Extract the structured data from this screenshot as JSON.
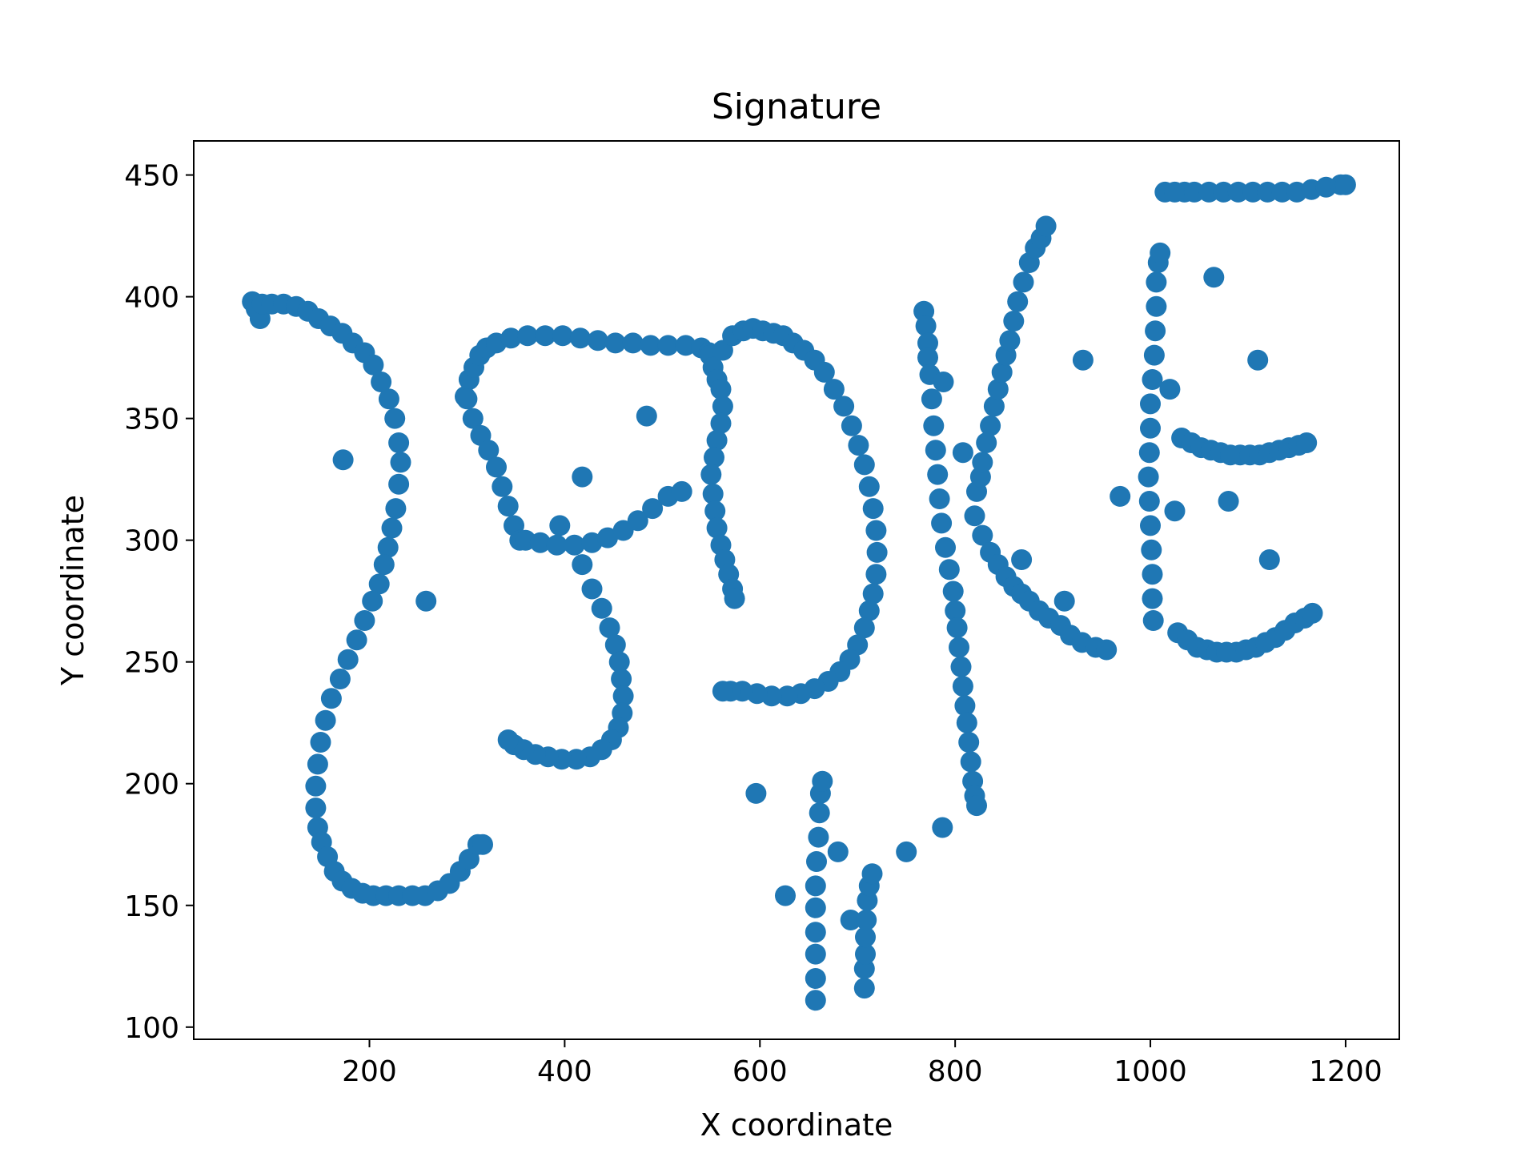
{
  "chart_data": {
    "type": "scatter",
    "title": "Signature",
    "xlabel": "X coordinate",
    "ylabel": "Y coordinate",
    "xlim": [
      20,
      1255
    ],
    "ylim": [
      95,
      464
    ],
    "xticks": [
      200,
      400,
      600,
      800,
      1000,
      1200
    ],
    "yticks": [
      100,
      150,
      200,
      250,
      300,
      350,
      400,
      450
    ],
    "grid": false,
    "marker_color": "#1f77b4",
    "series": [
      {
        "points": [
          [
            80,
            398
          ],
          [
            84,
            395
          ],
          [
            88,
            391
          ],
          [
            90,
            397
          ],
          [
            100,
            397
          ],
          [
            112,
            397
          ],
          [
            125,
            396
          ],
          [
            137,
            394
          ],
          [
            148,
            391
          ],
          [
            160,
            388
          ],
          [
            172,
            385
          ],
          [
            183,
            381
          ],
          [
            195,
            377
          ],
          [
            204,
            372
          ],
          [
            212,
            365
          ],
          [
            220,
            358
          ],
          [
            226,
            350
          ],
          [
            230,
            340
          ],
          [
            232,
            332
          ],
          [
            230,
            323
          ],
          [
            227,
            313
          ],
          [
            223,
            305
          ],
          [
            219,
            297
          ],
          [
            215,
            290
          ],
          [
            210,
            282
          ],
          [
            203,
            275
          ],
          [
            195,
            267
          ],
          [
            187,
            259
          ],
          [
            178,
            251
          ],
          [
            170,
            243
          ],
          [
            161,
            235
          ],
          [
            155,
            226
          ],
          [
            150,
            217
          ],
          [
            147,
            208
          ],
          [
            145,
            199
          ],
          [
            145,
            190
          ],
          [
            147,
            182
          ],
          [
            151,
            176
          ],
          [
            157,
            170
          ],
          [
            164,
            164
          ],
          [
            172,
            160
          ],
          [
            182,
            157
          ],
          [
            193,
            155
          ],
          [
            204,
            154
          ],
          [
            217,
            154
          ],
          [
            230,
            154
          ],
          [
            244,
            154
          ],
          [
            257,
            154
          ],
          [
            270,
            156
          ],
          [
            282,
            159
          ],
          [
            293,
            164
          ],
          [
            302,
            169
          ],
          [
            311,
            175
          ],
          [
            316,
            175
          ],
          [
            173,
            333
          ],
          [
            258,
            275
          ],
          [
            298,
            359
          ],
          [
            302,
            366
          ],
          [
            307,
            371
          ],
          [
            313,
            376
          ],
          [
            320,
            379
          ],
          [
            330,
            381
          ],
          [
            345,
            383
          ],
          [
            362,
            384
          ],
          [
            380,
            384
          ],
          [
            398,
            384
          ],
          [
            416,
            383
          ],
          [
            434,
            382
          ],
          [
            452,
            381
          ],
          [
            470,
            381
          ],
          [
            488,
            380
          ],
          [
            506,
            380
          ],
          [
            524,
            380
          ],
          [
            540,
            379
          ],
          [
            548,
            377
          ],
          [
            300,
            358
          ],
          [
            306,
            350
          ],
          [
            314,
            343
          ],
          [
            322,
            337
          ],
          [
            330,
            330
          ],
          [
            336,
            322
          ],
          [
            342,
            314
          ],
          [
            348,
            306
          ],
          [
            354,
            300
          ],
          [
            360,
            300
          ],
          [
            375,
            299
          ],
          [
            392,
            298
          ],
          [
            410,
            298
          ],
          [
            428,
            299
          ],
          [
            444,
            301
          ],
          [
            460,
            304
          ],
          [
            475,
            308
          ],
          [
            490,
            313
          ],
          [
            506,
            318
          ],
          [
            520,
            320
          ],
          [
            418,
            290
          ],
          [
            428,
            280
          ],
          [
            438,
            272
          ],
          [
            446,
            264
          ],
          [
            452,
            257
          ],
          [
            456,
            250
          ],
          [
            458,
            243
          ],
          [
            460,
            236
          ],
          [
            459,
            229
          ],
          [
            455,
            223
          ],
          [
            448,
            218
          ],
          [
            438,
            214
          ],
          [
            426,
            211
          ],
          [
            412,
            210
          ],
          [
            397,
            210
          ],
          [
            383,
            211
          ],
          [
            370,
            212
          ],
          [
            358,
            214
          ],
          [
            348,
            216
          ],
          [
            342,
            218
          ],
          [
            484,
            351
          ],
          [
            418,
            326
          ],
          [
            395,
            306
          ],
          [
            549,
            376
          ],
          [
            552,
            371
          ],
          [
            556,
            366
          ],
          [
            560,
            362
          ],
          [
            562,
            355
          ],
          [
            560,
            348
          ],
          [
            556,
            341
          ],
          [
            553,
            334
          ],
          [
            550,
            327
          ],
          [
            552,
            319
          ],
          [
            554,
            312
          ],
          [
            556,
            305
          ],
          [
            560,
            298
          ],
          [
            564,
            292
          ],
          [
            568,
            286
          ],
          [
            572,
            280
          ],
          [
            574,
            276
          ],
          [
            562,
            378
          ],
          [
            572,
            384
          ],
          [
            583,
            386
          ],
          [
            593,
            387
          ],
          [
            603,
            386
          ],
          [
            614,
            385
          ],
          [
            624,
            384
          ],
          [
            634,
            381
          ],
          [
            645,
            378
          ],
          [
            656,
            374
          ],
          [
            666,
            369
          ],
          [
            676,
            362
          ],
          [
            686,
            355
          ],
          [
            694,
            347
          ],
          [
            701,
            339
          ],
          [
            707,
            331
          ],
          [
            712,
            322
          ],
          [
            716,
            313
          ],
          [
            719,
            304
          ],
          [
            720,
            295
          ],
          [
            719,
            286
          ],
          [
            716,
            278
          ],
          [
            712,
            271
          ],
          [
            707,
            264
          ],
          [
            700,
            257
          ],
          [
            692,
            251
          ],
          [
            682,
            246
          ],
          [
            670,
            242
          ],
          [
            656,
            239
          ],
          [
            642,
            237
          ],
          [
            628,
            236
          ],
          [
            612,
            236
          ],
          [
            597,
            237
          ],
          [
            582,
            238
          ],
          [
            570,
            238
          ],
          [
            562,
            238
          ],
          [
            596,
            196
          ],
          [
            626,
            154
          ],
          [
            680,
            172
          ],
          [
            693,
            144
          ],
          [
            750,
            172
          ],
          [
            787,
            182
          ],
          [
            657,
            111
          ],
          [
            657,
            120
          ],
          [
            657,
            130
          ],
          [
            657,
            139
          ],
          [
            657,
            149
          ],
          [
            657,
            158
          ],
          [
            658,
            168
          ],
          [
            660,
            178
          ],
          [
            661,
            188
          ],
          [
            662,
            196
          ],
          [
            664,
            201
          ],
          [
            707,
            116
          ],
          [
            707,
            124
          ],
          [
            708,
            130
          ],
          [
            708,
            137
          ],
          [
            709,
            144
          ],
          [
            710,
            152
          ],
          [
            712,
            158
          ],
          [
            715,
            163
          ],
          [
            768,
            394
          ],
          [
            770,
            388
          ],
          [
            772,
            381
          ],
          [
            772,
            375
          ],
          [
            774,
            368
          ],
          [
            776,
            358
          ],
          [
            778,
            347
          ],
          [
            780,
            337
          ],
          [
            782,
            327
          ],
          [
            784,
            317
          ],
          [
            786,
            307
          ],
          [
            790,
            297
          ],
          [
            794,
            288
          ],
          [
            798,
            279
          ],
          [
            800,
            271
          ],
          [
            802,
            264
          ],
          [
            804,
            256
          ],
          [
            806,
            248
          ],
          [
            808,
            240
          ],
          [
            810,
            232
          ],
          [
            812,
            225
          ],
          [
            814,
            217
          ],
          [
            816,
            209
          ],
          [
            818,
            201
          ],
          [
            820,
            195
          ],
          [
            822,
            191
          ],
          [
            788,
            365
          ],
          [
            808,
            336
          ],
          [
            820,
            310
          ],
          [
            828,
            302
          ],
          [
            836,
            295
          ],
          [
            844,
            290
          ],
          [
            852,
            285
          ],
          [
            860,
            281
          ],
          [
            868,
            278
          ],
          [
            876,
            275
          ],
          [
            886,
            271
          ],
          [
            896,
            268
          ],
          [
            908,
            265
          ],
          [
            918,
            261
          ],
          [
            930,
            258
          ],
          [
            944,
            256
          ],
          [
            955,
            255
          ],
          [
            822,
            320
          ],
          [
            826,
            326
          ],
          [
            828,
            332
          ],
          [
            832,
            340
          ],
          [
            836,
            347
          ],
          [
            840,
            355
          ],
          [
            844,
            362
          ],
          [
            848,
            369
          ],
          [
            852,
            376
          ],
          [
            856,
            382
          ],
          [
            860,
            390
          ],
          [
            864,
            398
          ],
          [
            870,
            406
          ],
          [
            876,
            414
          ],
          [
            882,
            420
          ],
          [
            888,
            424
          ],
          [
            893,
            429
          ],
          [
            868,
            292
          ],
          [
            912,
            275
          ],
          [
            931,
            374
          ],
          [
            969,
            318
          ],
          [
            1003,
            267
          ],
          [
            1002,
            276
          ],
          [
            1002,
            286
          ],
          [
            1001,
            296
          ],
          [
            1000,
            306
          ],
          [
            999,
            316
          ],
          [
            998,
            326
          ],
          [
            999,
            336
          ],
          [
            1000,
            346
          ],
          [
            1000,
            356
          ],
          [
            1002,
            366
          ],
          [
            1004,
            376
          ],
          [
            1005,
            386
          ],
          [
            1006,
            396
          ],
          [
            1006,
            406
          ],
          [
            1008,
            414
          ],
          [
            1010,
            418
          ],
          [
            1020,
            362
          ],
          [
            1025,
            312
          ],
          [
            1065,
            408
          ],
          [
            1080,
            316
          ],
          [
            1110,
            374
          ],
          [
            1122,
            292
          ],
          [
            1015,
            443
          ],
          [
            1025,
            443
          ],
          [
            1035,
            443
          ],
          [
            1045,
            443
          ],
          [
            1060,
            443
          ],
          [
            1075,
            443
          ],
          [
            1090,
            443
          ],
          [
            1105,
            443
          ],
          [
            1120,
            443
          ],
          [
            1135,
            443
          ],
          [
            1150,
            443
          ],
          [
            1165,
            444
          ],
          [
            1180,
            445
          ],
          [
            1195,
            446
          ],
          [
            1200,
            446
          ],
          [
            1032,
            342
          ],
          [
            1042,
            340
          ],
          [
            1052,
            338
          ],
          [
            1062,
            337
          ],
          [
            1072,
            336
          ],
          [
            1082,
            335
          ],
          [
            1092,
            335
          ],
          [
            1102,
            335
          ],
          [
            1112,
            335
          ],
          [
            1122,
            336
          ],
          [
            1132,
            337
          ],
          [
            1142,
            338
          ],
          [
            1152,
            339
          ],
          [
            1160,
            340
          ],
          [
            1028,
            262
          ],
          [
            1038,
            259
          ],
          [
            1048,
            256
          ],
          [
            1058,
            255
          ],
          [
            1068,
            254
          ],
          [
            1078,
            254
          ],
          [
            1088,
            254
          ],
          [
            1098,
            255
          ],
          [
            1108,
            256
          ],
          [
            1118,
            258
          ],
          [
            1128,
            260
          ],
          [
            1138,
            263
          ],
          [
            1148,
            266
          ],
          [
            1158,
            268
          ],
          [
            1166,
            270
          ]
        ]
      }
    ]
  }
}
